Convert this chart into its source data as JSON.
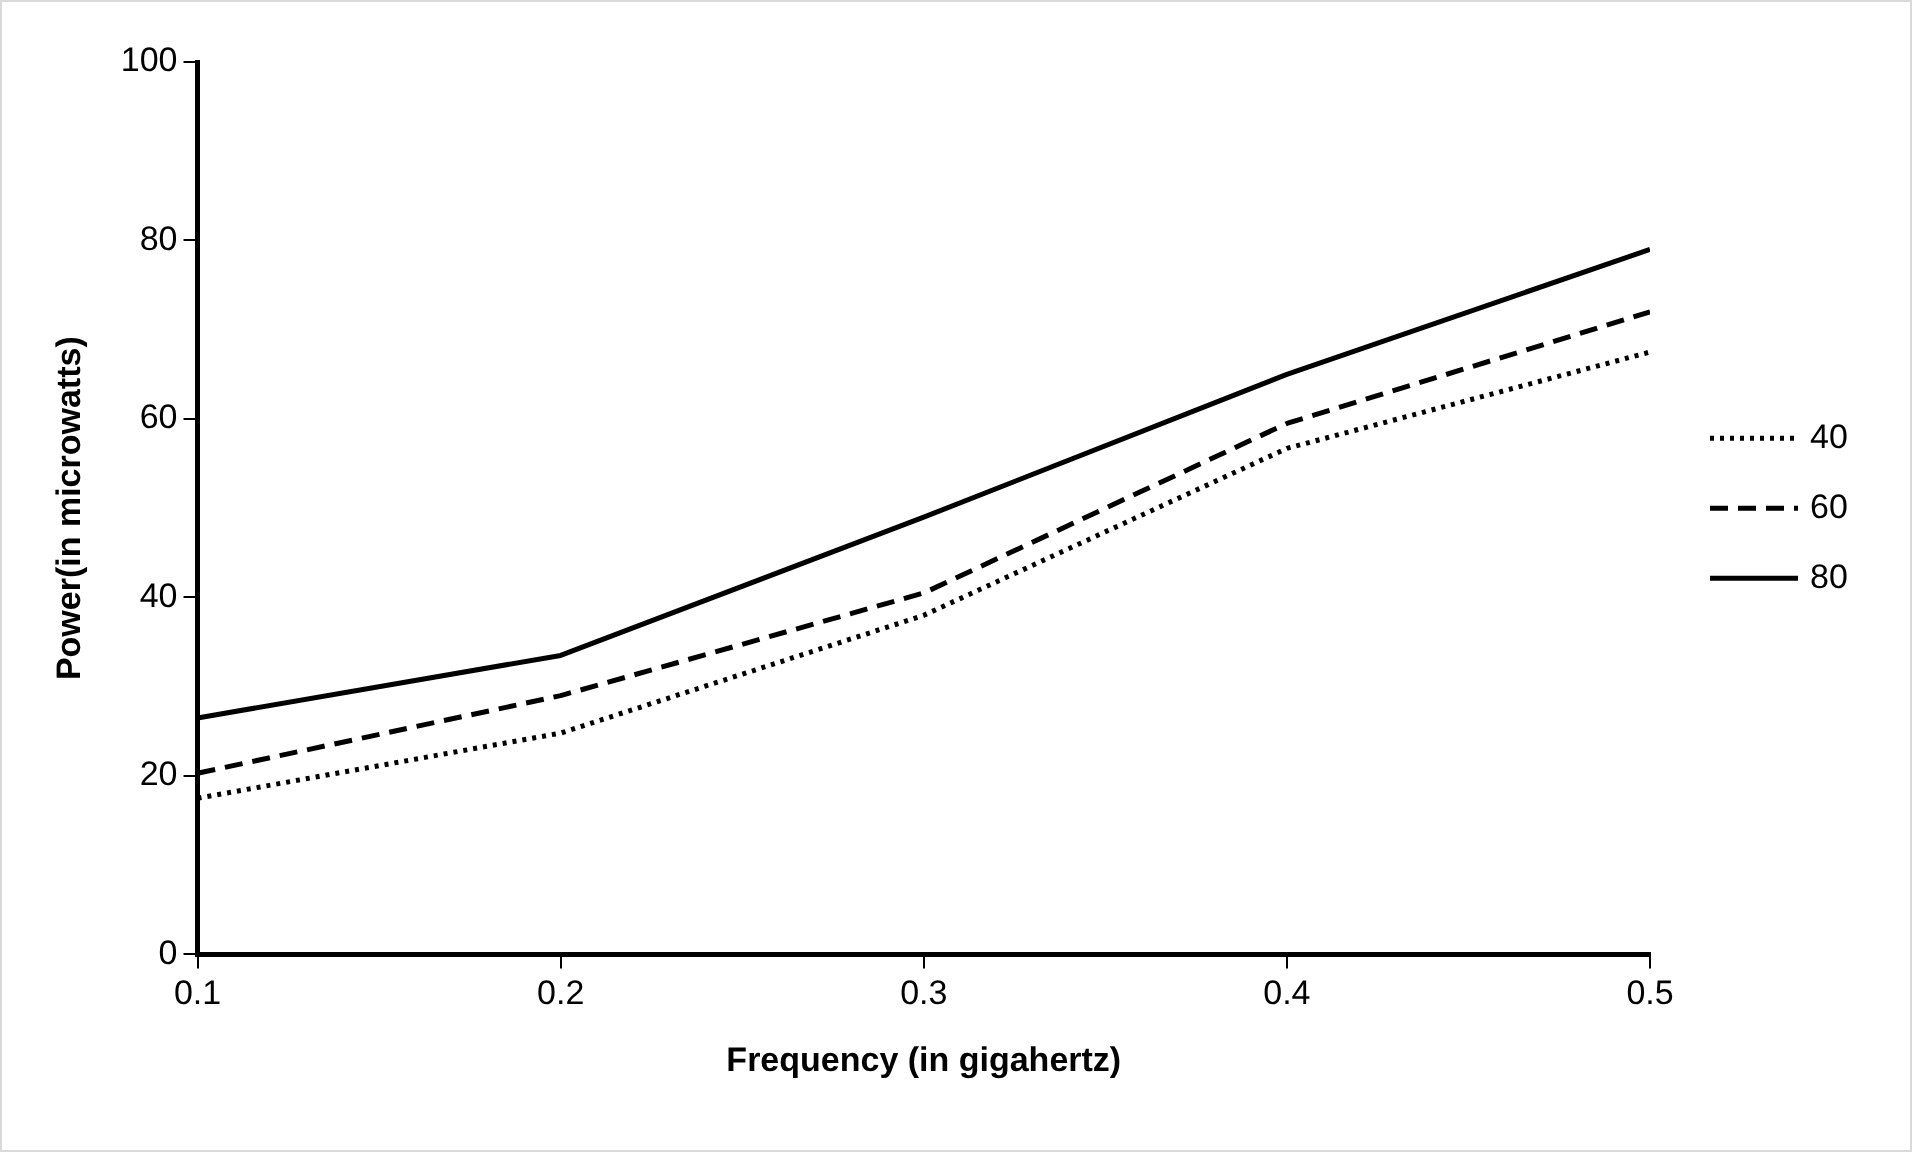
{
  "chart_data": {
    "type": "line",
    "xlabel": "Frequency (in gigahertz)",
    "ylabel": "Power(in microwatts)",
    "x": [
      0.1,
      0.2,
      0.3,
      0.4,
      0.5
    ],
    "xlim": [
      0.1,
      0.5
    ],
    "xticks": [
      0.1,
      0.2,
      0.3,
      0.4,
      0.5
    ],
    "ylim": [
      0,
      100
    ],
    "yticks": [
      0,
      20,
      40,
      60,
      80,
      100
    ],
    "grid": false,
    "legend": "right",
    "marker": "none",
    "series": [
      {
        "name": "40",
        "color": "#000000",
        "line_style": "dotted",
        "values": [
          17.5,
          24.8,
          38,
          56.7,
          67.5
        ]
      },
      {
        "name": "60",
        "color": "#000000",
        "line_style": "dashed",
        "values": [
          20.3,
          29,
          40.5,
          59.5,
          72
        ]
      },
      {
        "name": "80",
        "color": "#000000",
        "line_style": "solid",
        "values": [
          26.5,
          33.5,
          49,
          65,
          79
        ]
      }
    ]
  }
}
